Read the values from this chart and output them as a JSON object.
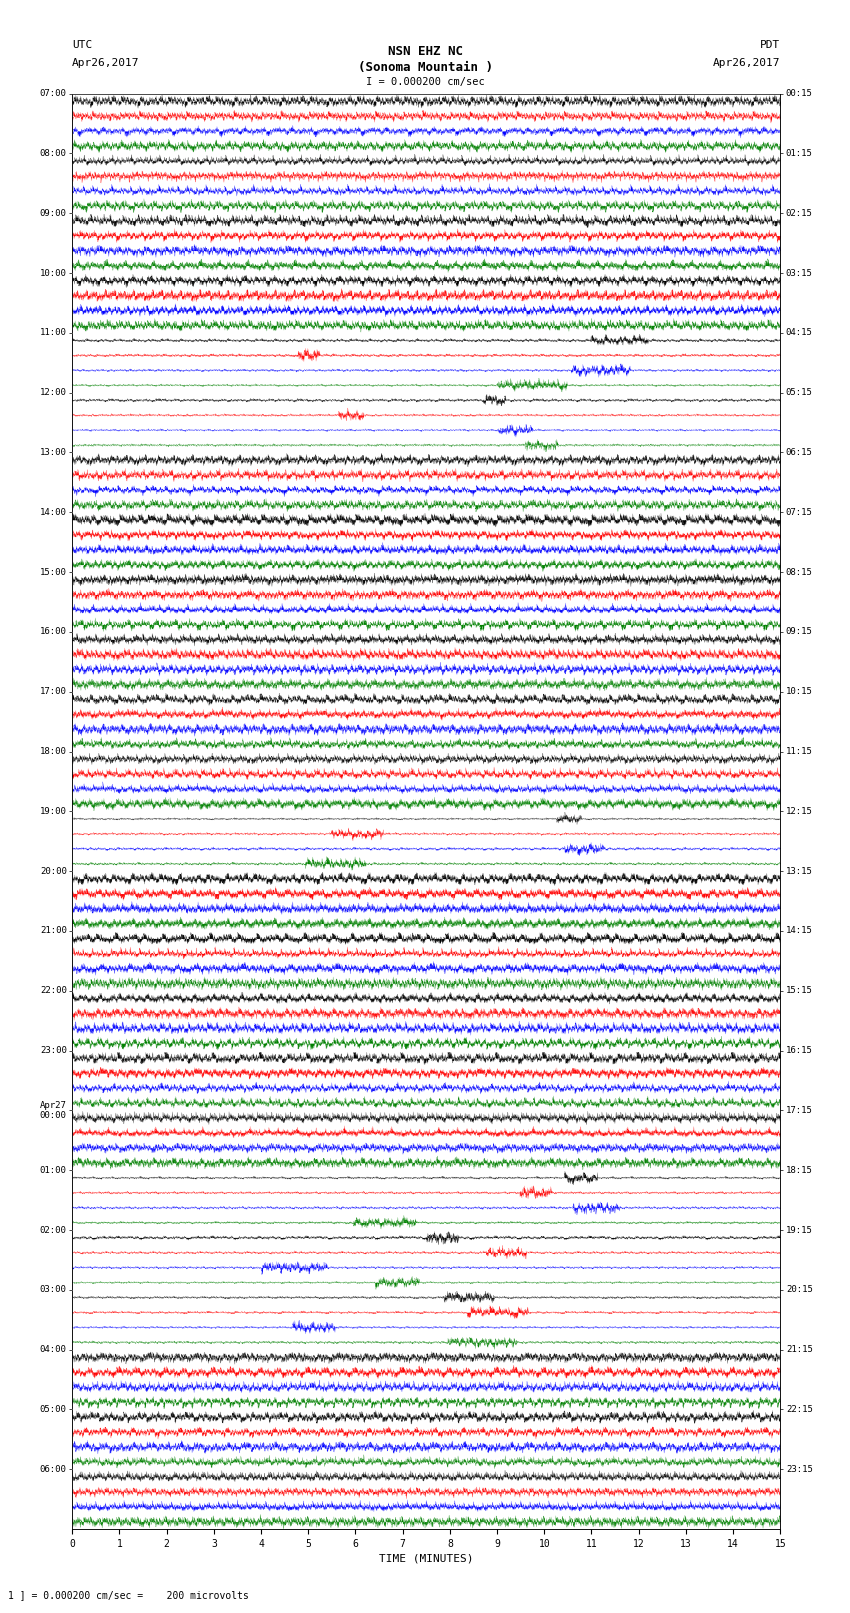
{
  "title_line1": "NSN EHZ NC",
  "title_line2": "(Sonoma Mountain )",
  "title_line3": "I = 0.000200 cm/sec",
  "left_header1": "UTC",
  "left_header2": "Apr26,2017",
  "right_header1": "PDT",
  "right_header2": "Apr26,2017",
  "xlabel": "TIME (MINUTES)",
  "footer": "1 ] = 0.000200 cm/sec =    200 microvolts",
  "utc_labels": [
    "07:00",
    "08:00",
    "09:00",
    "10:00",
    "11:00",
    "12:00",
    "13:00",
    "14:00",
    "15:00",
    "16:00",
    "17:00",
    "18:00",
    "19:00",
    "20:00",
    "21:00",
    "22:00",
    "23:00",
    "Apr27\n00:00",
    "01:00",
    "02:00",
    "03:00",
    "04:00",
    "05:00",
    "06:00"
  ],
  "pdt_labels": [
    "00:15",
    "01:15",
    "02:15",
    "03:15",
    "04:15",
    "05:15",
    "06:15",
    "07:15",
    "08:15",
    "09:15",
    "10:15",
    "11:15",
    "12:15",
    "13:15",
    "14:15",
    "15:15",
    "16:15",
    "17:15",
    "18:15",
    "19:15",
    "20:15",
    "21:15",
    "22:15",
    "23:15"
  ],
  "n_rows": 24,
  "n_traces_per_row": 4,
  "minutes": 15,
  "colors": [
    "black",
    "red",
    "blue",
    "green"
  ],
  "bg_color": "white",
  "figwidth": 8.5,
  "figheight": 16.13
}
